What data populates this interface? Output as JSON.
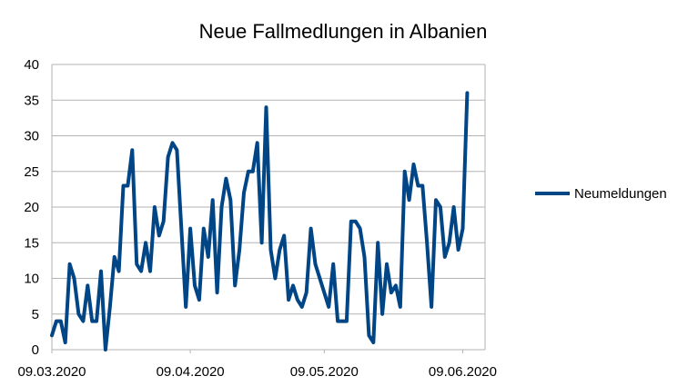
{
  "chart_data": {
    "type": "line",
    "title": "Neue Fallmedlungen in Albanien",
    "xlabel": "",
    "ylabel": "",
    "ylim": [
      0,
      40
    ],
    "yticks": [
      "0",
      "5",
      "10",
      "15",
      "20",
      "25",
      "30",
      "35",
      "40"
    ],
    "x_start": "09.03.2020",
    "x_end": "14.06.2020",
    "xticks": [
      {
        "date": "09.03.2020",
        "label": "09.03.2020"
      },
      {
        "date": "09.04.2020",
        "label": "09.04.2020"
      },
      {
        "date": "09.05.2020",
        "label": "09.05.2020"
      },
      {
        "date": "09.06.2020",
        "label": "09.06.2020"
      }
    ],
    "grid": "horizontal",
    "legend_position": "right",
    "series": [
      {
        "name": "Neumeldungen",
        "color": "#004586",
        "values": [
          2,
          4,
          4,
          1,
          12,
          10,
          5,
          4,
          9,
          4,
          4,
          11,
          0,
          6,
          13,
          11,
          23,
          23,
          28,
          12,
          11,
          15,
          11,
          20,
          16,
          18,
          27,
          29,
          28,
          17,
          6,
          17,
          9,
          7,
          17,
          13,
          21,
          8,
          20,
          24,
          21,
          9,
          14,
          22,
          25,
          25,
          29,
          15,
          34,
          14,
          10,
          14,
          16,
          7,
          9,
          7,
          6,
          8,
          17,
          12,
          10,
          8,
          6,
          12,
          4,
          4,
          4,
          18,
          18,
          17,
          13,
          2,
          1,
          15,
          5,
          12,
          8,
          9,
          6,
          25,
          21,
          26,
          23,
          23,
          15,
          6,
          21,
          20,
          13,
          15,
          20,
          14,
          17,
          36
        ]
      }
    ]
  }
}
